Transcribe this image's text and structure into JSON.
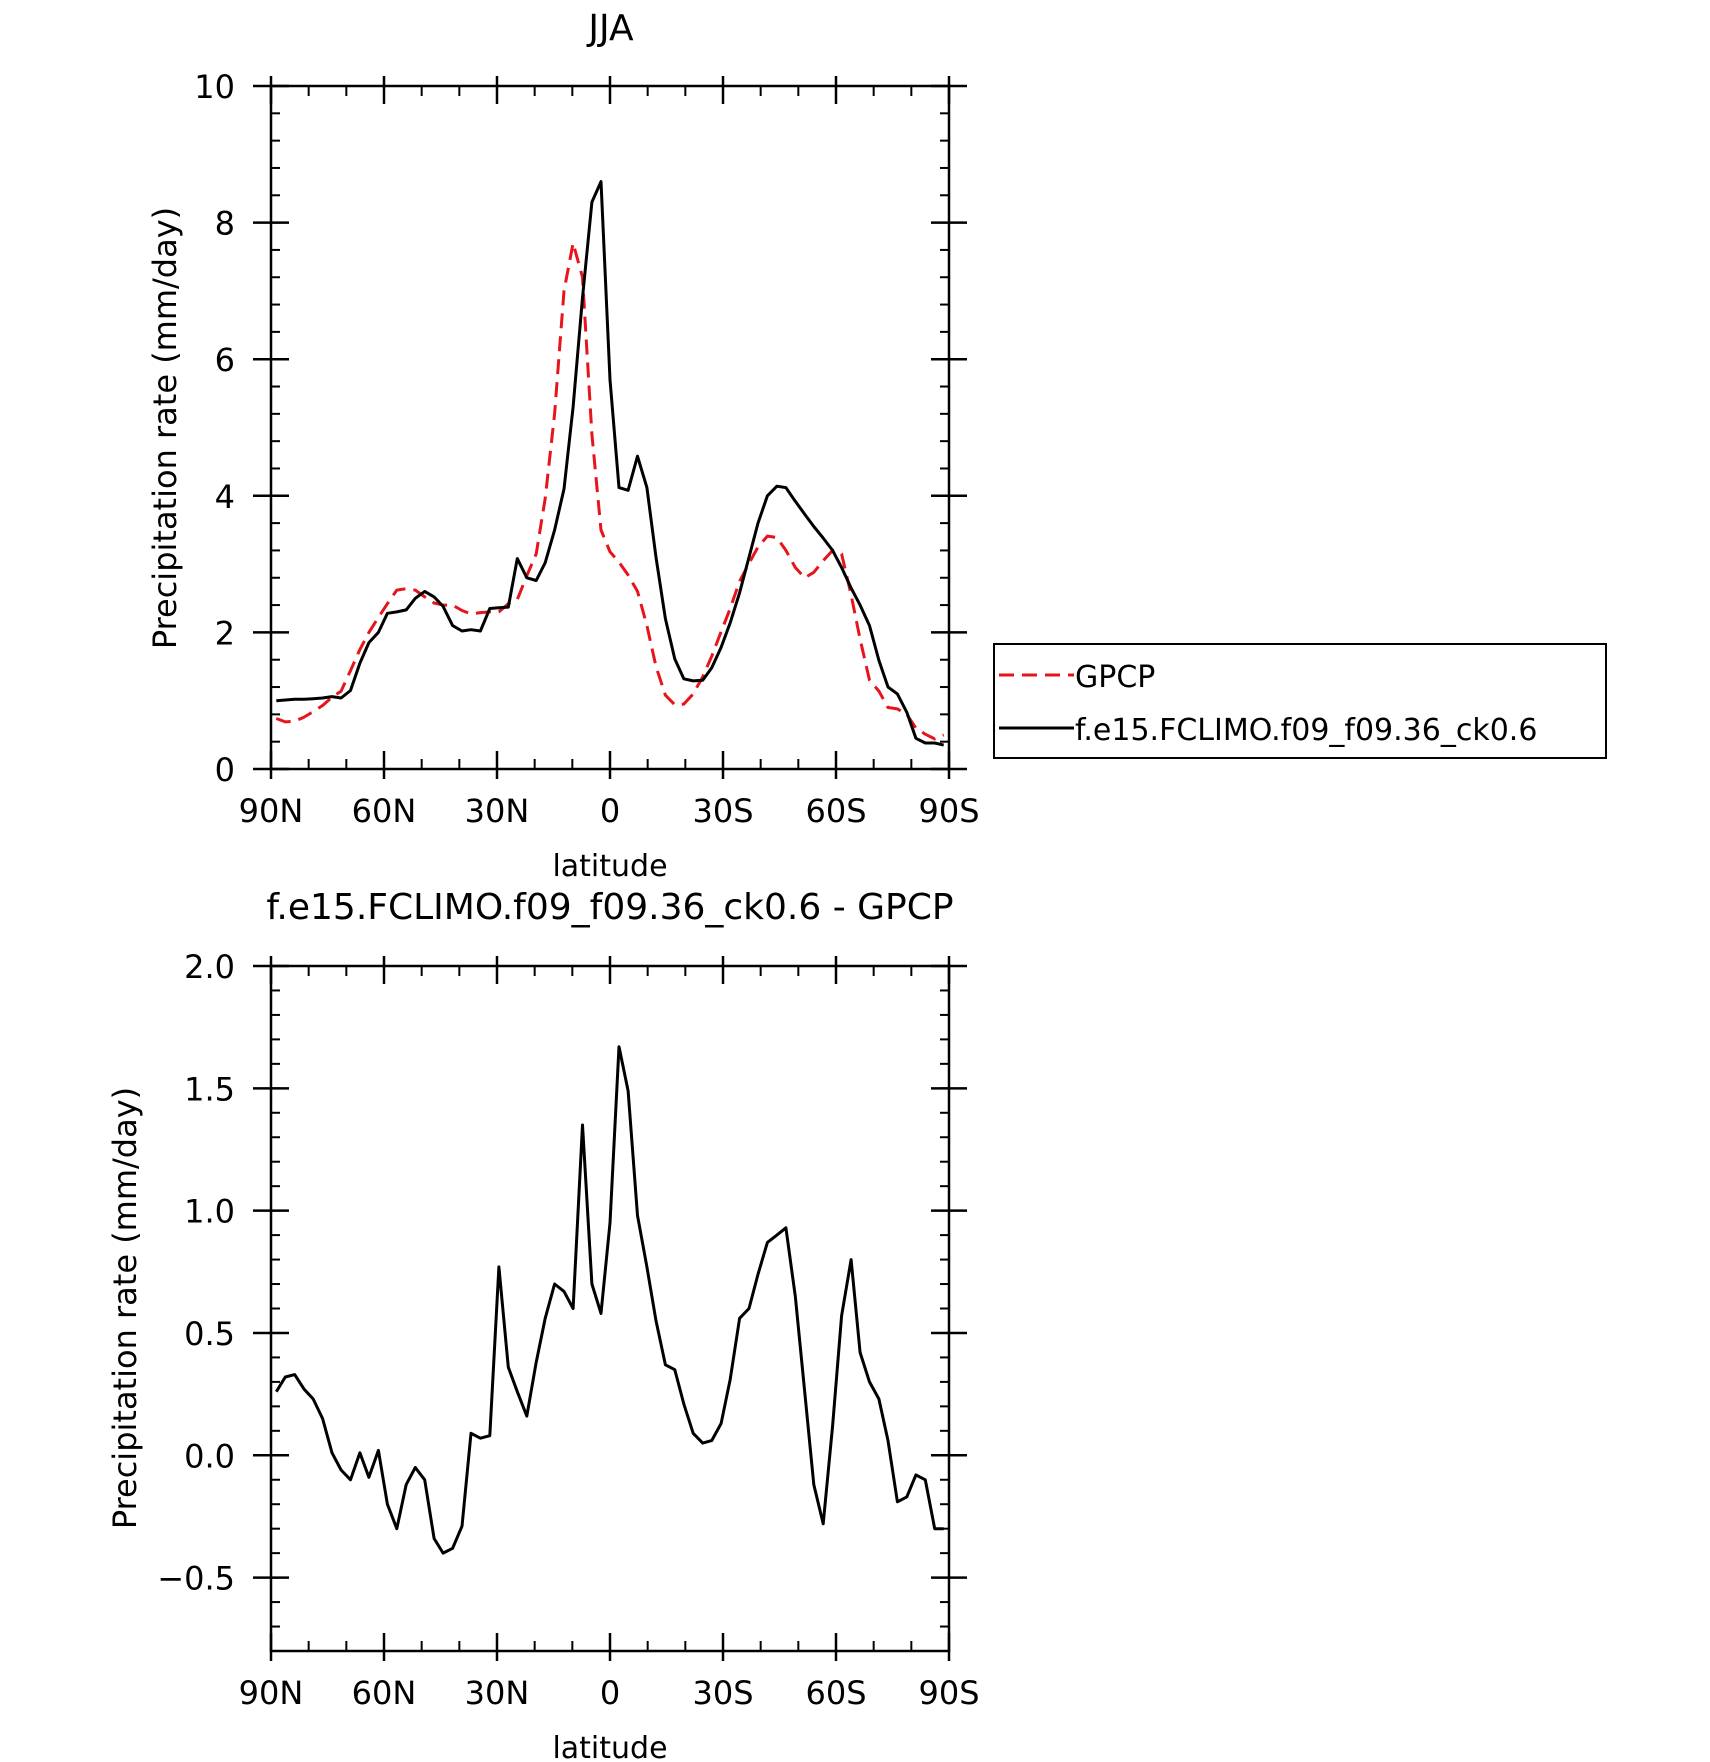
{
  "chart_data": [
    {
      "type": "line",
      "title": "JJA",
      "xlabel": "latitude",
      "ylabel": "Precipitation rate (mm/day)",
      "xlim": [
        90,
        -90
      ],
      "ylim": [
        0,
        10
      ],
      "xticks": [
        90,
        60,
        30,
        0,
        -30,
        -60,
        -90
      ],
      "xtick_labels": [
        "90N",
        "60N",
        "30N",
        "0",
        "30S",
        "60S",
        "90S"
      ],
      "yticks": [
        0,
        2,
        4,
        6,
        8,
        10
      ],
      "ytick_labels": [
        "0",
        "2",
        "4",
        "6",
        "8",
        "10"
      ],
      "grid": false,
      "legend_position": "right, outside plot",
      "series": [
        {
          "name": "GPCP",
          "color": "#e8141c",
          "dash": "dashed",
          "x": [
            88.6,
            86.2,
            83.7,
            81.2,
            78.8,
            76.3,
            73.8,
            71.4,
            68.9,
            66.4,
            64.0,
            61.5,
            59.1,
            56.6,
            54.1,
            51.7,
            49.2,
            46.7,
            44.3,
            41.8,
            39.3,
            36.9,
            34.4,
            31.9,
            29.5,
            27.0,
            24.6,
            22.1,
            19.6,
            17.2,
            14.7,
            12.2,
            9.8,
            7.3,
            4.8,
            2.4,
            0.0,
            -2.4,
            -4.8,
            -7.3,
            -9.8,
            -12.2,
            -14.7,
            -17.2,
            -19.6,
            -22.1,
            -24.6,
            -27.0,
            -29.5,
            -31.9,
            -34.4,
            -36.9,
            -39.3,
            -41.8,
            -44.3,
            -46.7,
            -49.2,
            -51.7,
            -54.1,
            -56.6,
            -59.1,
            -61.5,
            -64.0,
            -66.4,
            -68.9,
            -71.4,
            -73.8,
            -76.3,
            -78.8,
            -81.2,
            -83.7,
            -86.2,
            -88.6
          ],
          "values": [
            0.74,
            0.69,
            0.7,
            0.76,
            0.84,
            0.93,
            1.05,
            1.14,
            1.44,
            1.75,
            2.0,
            2.22,
            2.42,
            2.62,
            2.64,
            2.62,
            2.52,
            2.43,
            2.4,
            2.4,
            2.32,
            2.27,
            2.29,
            2.3,
            2.3,
            2.42,
            2.48,
            2.83,
            3.15,
            3.96,
            5.2,
            7.0,
            7.7,
            7.2,
            4.9,
            3.5,
            3.18,
            3.03,
            2.84,
            2.6,
            2.1,
            1.5,
            1.08,
            0.94,
            0.95,
            1.1,
            1.35,
            1.65,
            2.01,
            2.35,
            2.75,
            3.01,
            3.25,
            3.41,
            3.39,
            3.2,
            2.95,
            2.8,
            2.88,
            3.05,
            3.2,
            3.15,
            2.55,
            1.9,
            1.3,
            1.14,
            0.9,
            0.88,
            0.8,
            0.6,
            0.51,
            0.44,
            0.5
          ]
        },
        {
          "name": "f.e15.FCLIMO.f09_f09.36_ck0.6",
          "color": "#000000",
          "dash": "solid",
          "x": [
            88.6,
            86.2,
            83.7,
            81.2,
            78.8,
            76.3,
            73.8,
            71.4,
            68.9,
            66.4,
            64.0,
            61.5,
            59.1,
            56.6,
            54.1,
            51.7,
            49.2,
            46.7,
            44.3,
            41.8,
            39.3,
            36.9,
            34.4,
            31.9,
            29.5,
            27.0,
            24.6,
            22.1,
            19.6,
            17.2,
            14.7,
            12.2,
            9.8,
            7.3,
            4.8,
            2.4,
            0.0,
            -2.4,
            -4.8,
            -7.3,
            -9.8,
            -12.2,
            -14.7,
            -17.2,
            -19.6,
            -22.1,
            -24.6,
            -27.0,
            -29.5,
            -31.9,
            -34.4,
            -36.9,
            -39.3,
            -41.8,
            -44.3,
            -46.7,
            -49.2,
            -51.7,
            -54.1,
            -56.6,
            -59.1,
            -61.5,
            -64.0,
            -66.4,
            -68.9,
            -71.4,
            -73.8,
            -76.3,
            -78.8,
            -81.2,
            -83.7,
            -86.2,
            -88.6
          ],
          "values": [
            1.0,
            1.01,
            1.02,
            1.02,
            1.03,
            1.04,
            1.06,
            1.04,
            1.15,
            1.55,
            1.85,
            2.0,
            2.28,
            2.3,
            2.33,
            2.5,
            2.6,
            2.52,
            2.38,
            2.1,
            2.02,
            2.04,
            2.02,
            2.35,
            2.36,
            2.37,
            3.08,
            2.8,
            2.76,
            3.02,
            3.5,
            4.1,
            5.3,
            6.9,
            8.3,
            8.6,
            5.7,
            4.12,
            4.08,
            4.58,
            4.12,
            3.1,
            2.2,
            1.61,
            1.32,
            1.29,
            1.3,
            1.48,
            1.78,
            2.14,
            2.58,
            3.1,
            3.6,
            4.0,
            4.14,
            4.12,
            3.92,
            3.73,
            3.55,
            3.38,
            3.2,
            2.95,
            2.65,
            2.4,
            2.1,
            1.59,
            1.2,
            1.1,
            0.83,
            0.45,
            0.38,
            0.38,
            0.35
          ]
        }
      ]
    },
    {
      "type": "line",
      "title": "f.e15.FCLIMO.f09_f09.36_ck0.6 - GPCP",
      "xlabel": "latitude",
      "ylabel": "Precipitation rate (mm/day)",
      "xlim": [
        90,
        -90
      ],
      "ylim": [
        -0.8,
        2.0
      ],
      "xticks": [
        90,
        60,
        30,
        0,
        -30,
        -60,
        -90
      ],
      "xtick_labels": [
        "90N",
        "60N",
        "30N",
        "0",
        "30S",
        "60S",
        "90S"
      ],
      "yticks": [
        -0.5,
        0.0,
        0.5,
        1.0,
        1.5,
        2.0
      ],
      "ytick_labels": [
        "−0.5",
        "0.0",
        "0.5",
        "1.0",
        "1.5",
        "2.0"
      ],
      "grid": false,
      "series": [
        {
          "color": "#000000",
          "dash": "solid",
          "x": [
            88.6,
            86.2,
            83.7,
            81.2,
            78.8,
            76.3,
            73.8,
            71.4,
            68.9,
            66.4,
            64.0,
            61.5,
            59.1,
            56.6,
            54.1,
            51.7,
            49.2,
            46.7,
            44.3,
            41.8,
            39.3,
            36.9,
            34.4,
            31.9,
            29.5,
            27.0,
            24.6,
            22.1,
            19.6,
            17.2,
            14.7,
            12.2,
            9.8,
            7.3,
            4.8,
            2.4,
            0.0,
            -2.4,
            -4.8,
            -7.3,
            -9.8,
            -12.2,
            -14.7,
            -17.2,
            -19.6,
            -22.1,
            -24.6,
            -27.0,
            -29.5,
            -31.9,
            -34.4,
            -36.9,
            -39.3,
            -41.8,
            -44.3,
            -46.7,
            -49.2,
            -51.7,
            -54.1,
            -56.6,
            -59.1,
            -61.5,
            -64.0,
            -66.4,
            -68.9,
            -71.4,
            -73.8,
            -76.3,
            -78.8,
            -81.2,
            -83.7,
            -86.2,
            -88.6
          ],
          "values": [
            0.26,
            0.32,
            0.33,
            0.27,
            0.23,
            0.15,
            0.01,
            -0.06,
            -0.1,
            0.01,
            -0.09,
            0.02,
            -0.2,
            -0.3,
            -0.12,
            -0.05,
            -0.1,
            -0.34,
            -0.4,
            -0.38,
            -0.29,
            0.09,
            0.07,
            0.08,
            0.77,
            0.36,
            0.26,
            0.16,
            0.38,
            0.56,
            0.7,
            0.67,
            0.6,
            1.35,
            0.7,
            0.58,
            0.95,
            1.67,
            1.49,
            0.98,
            0.77,
            0.55,
            0.37,
            0.35,
            0.21,
            0.09,
            0.05,
            0.06,
            0.13,
            0.31,
            0.56,
            0.6,
            0.74,
            0.87,
            0.9,
            0.93,
            0.65,
            0.26,
            -0.12,
            -0.28,
            0.12,
            0.57,
            0.8,
            0.42,
            0.3,
            0.23,
            0.06,
            -0.19,
            -0.17,
            -0.08,
            -0.1,
            -0.3,
            -0.3
          ]
        }
      ]
    }
  ]
}
